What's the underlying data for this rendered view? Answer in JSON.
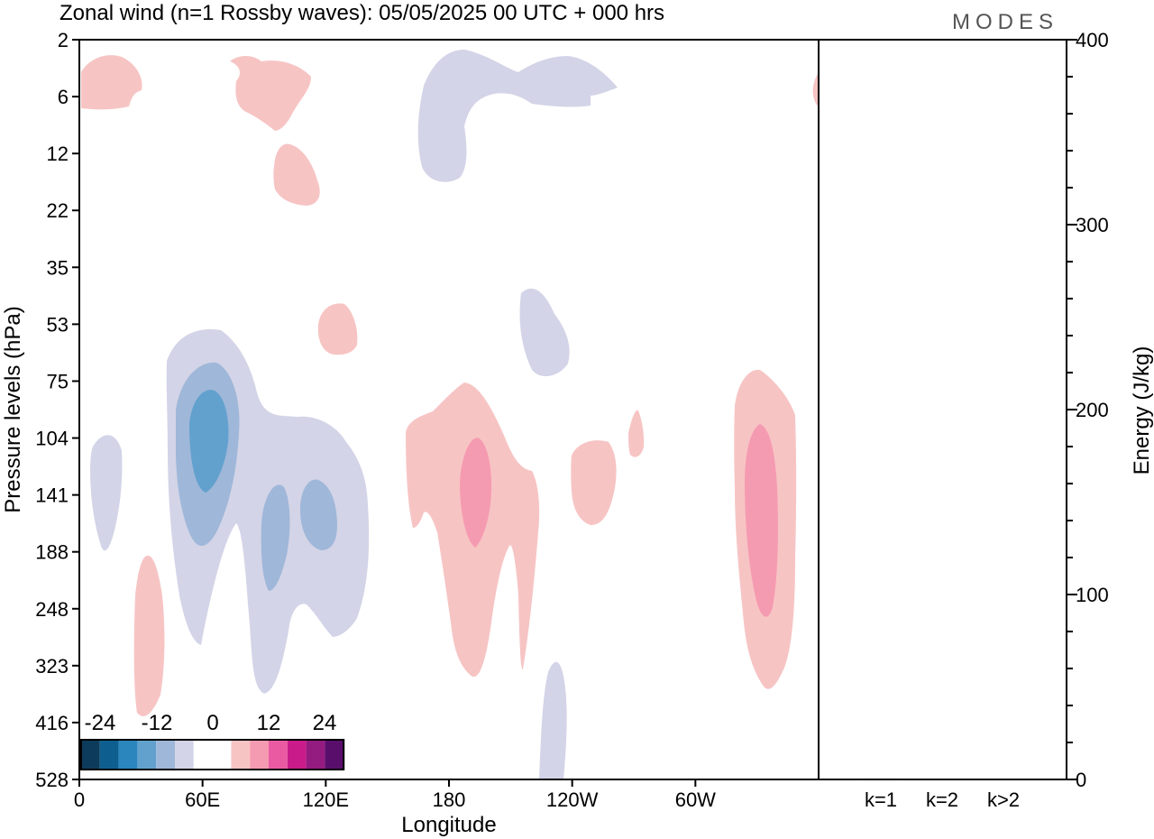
{
  "title": "Zonal wind (n=1 Rossby waves):  05/05/2025  00 UTC  + 000 hrs",
  "logo": "MODES",
  "chart_data": {
    "type": "heatmap",
    "title": "Zonal wind (n=1 Rossby waves):  05/05/2025  00 UTC  + 000 hrs",
    "xlabel": "Longitude",
    "ylabel": "Pressure levels (hPa)",
    "x_ticks": [
      "0",
      "60E",
      "120E",
      "180",
      "120W",
      "60W"
    ],
    "y_ticks": [
      "2",
      "6",
      "12",
      "22",
      "35",
      "53",
      "75",
      "104",
      "141",
      "188",
      "248",
      "323",
      "416",
      "528"
    ],
    "colorbar": {
      "tick_labels": [
        "-24",
        "-12",
        "0",
        "12",
        "24"
      ],
      "colors": [
        "#0d3b5c",
        "#0e5f8f",
        "#2a86bd",
        "#62a1cd",
        "#9fb7d9",
        "#d3d4e7",
        "#ffffff",
        "#ffffff",
        "#f7c4c4",
        "#f59bb1",
        "#ea5aa3",
        "#c91c8a",
        "#941b80",
        "#5a0e6b"
      ]
    },
    "contours": [
      {
        "value": "-3",
        "color": "#d3d4e7"
      },
      {
        "value": "-6",
        "color": "#9fb7d9"
      },
      {
        "value": "-9",
        "color": "#62a1cd"
      },
      {
        "value": "3",
        "color": "#f7c4c4"
      },
      {
        "value": "6",
        "color": "#f59bb1"
      }
    ],
    "energy_panel": {
      "ylabel": "Energy (J/kg)",
      "ylim": [
        0,
        400
      ],
      "y_ticks": [
        "0",
        "100",
        "200",
        "300",
        "400"
      ],
      "categories": [
        "k=1",
        "k=2",
        "k>2"
      ],
      "values": [
        0.5,
        0.2,
        0.4
      ]
    }
  }
}
